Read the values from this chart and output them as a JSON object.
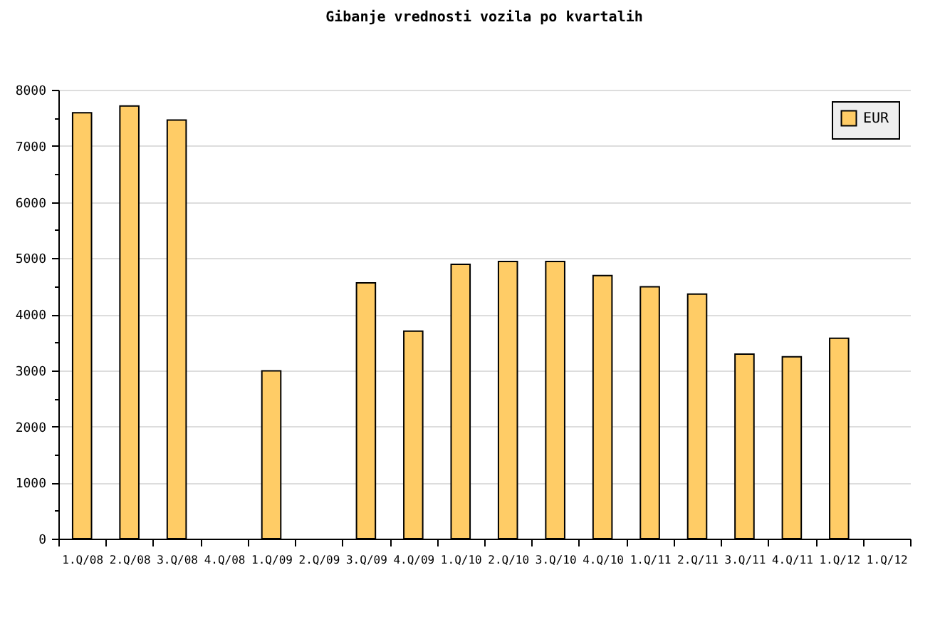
{
  "chart_data": {
    "type": "bar",
    "title": "Gibanje vrednosti vozila po kvartalih",
    "categories": [
      "1.Q/08",
      "2.Q/08",
      "3.Q/08",
      "4.Q/08",
      "1.Q/09",
      "2.Q/09",
      "3.Q/09",
      "4.Q/09",
      "1.Q/10",
      "2.Q/10",
      "3.Q/10",
      "4.Q/10",
      "1.Q/11",
      "2.Q/11",
      "3.Q/11",
      "4.Q/11",
      "1.Q/12",
      "1.Q/12"
    ],
    "series": [
      {
        "name": "EUR",
        "color": "#ffcc66",
        "values": [
          7590,
          7710,
          7460,
          null,
          2990,
          null,
          4560,
          3700,
          4890,
          4940,
          4940,
          4690,
          4490,
          4360,
          3290,
          3240,
          3570,
          null
        ]
      }
    ],
    "ylim": [
      0,
      8000
    ],
    "yticks": [
      0,
      {
        "value": 500,
        "label": null
      },
      1000,
      {
        "value": 1500,
        "label": null
      },
      2000,
      {
        "value": 2500,
        "label": null
      },
      3000,
      {
        "value": 3500,
        "label": null
      },
      4000,
      {
        "value": 4500,
        "label": null
      },
      5000,
      {
        "value": 5500,
        "label": null
      },
      6000,
      {
        "value": 6500,
        "label": null
      },
      7000,
      {
        "value": 7500,
        "label": null
      },
      8000
    ],
    "grid": "y",
    "legend": "top right"
  }
}
